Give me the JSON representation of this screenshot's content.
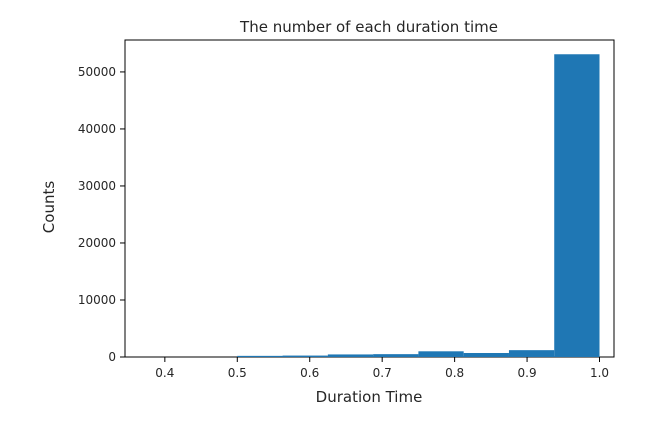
{
  "chart_data": {
    "type": "bar",
    "title": "The number of each duration time",
    "xlabel": "Duration Time",
    "ylabel": "Counts",
    "xlim": [
      0.345,
      1.02
    ],
    "ylim": [
      0,
      55600
    ],
    "x_ticks": [
      "0.4",
      "0.5",
      "0.6",
      "0.7",
      "0.8",
      "0.9",
      "1.0"
    ],
    "y_ticks": [
      "0",
      "10000",
      "20000",
      "30000",
      "40000",
      "50000"
    ],
    "bins": [
      {
        "x0": 0.375,
        "x1": 0.4375,
        "count": 0
      },
      {
        "x0": 0.4375,
        "x1": 0.5,
        "count": 0
      },
      {
        "x0": 0.5,
        "x1": 0.5625,
        "count": 200
      },
      {
        "x0": 0.5625,
        "x1": 0.625,
        "count": 250
      },
      {
        "x0": 0.625,
        "x1": 0.6875,
        "count": 450
      },
      {
        "x0": 0.6875,
        "x1": 0.75,
        "count": 500
      },
      {
        "x0": 0.75,
        "x1": 0.8125,
        "count": 1000
      },
      {
        "x0": 0.8125,
        "x1": 0.875,
        "count": 700
      },
      {
        "x0": 0.875,
        "x1": 0.9375,
        "count": 1200
      },
      {
        "x0": 0.9375,
        "x1": 1.0,
        "count": 53100
      }
    ],
    "color": "#1f77b4",
    "grid": false,
    "legend": false
  }
}
